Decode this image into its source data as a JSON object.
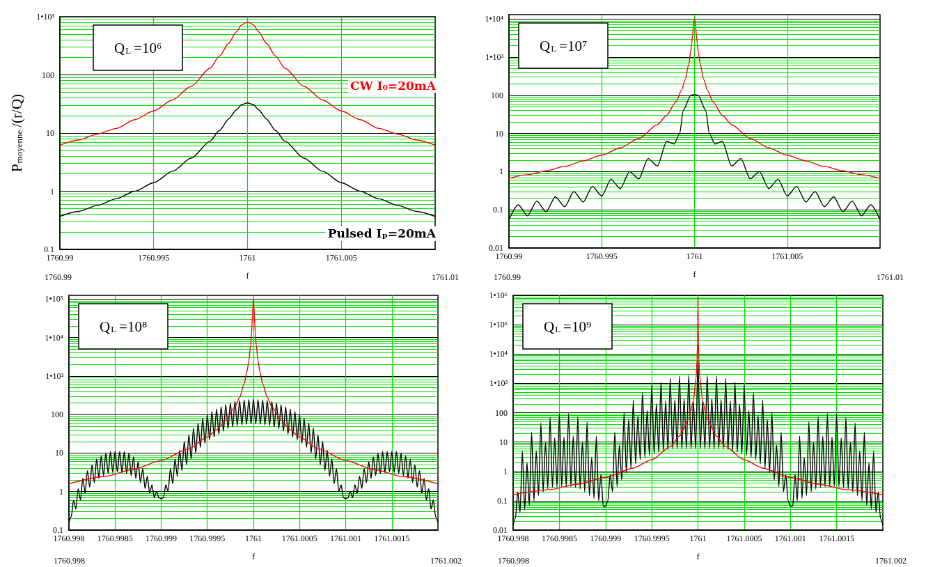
{
  "chart_data": [
    {
      "type": "line",
      "title": "Q$_{L}$=10⁶",
      "ylabel": "P$_{moyenne}$/(r/Q)",
      "xlabel": "f",
      "log": true,
      "grid": true,
      "xlim": [
        1760.99,
        1761.01
      ],
      "xticks": [
        1760.99,
        1760.995,
        1761,
        1761.005
      ],
      "ylim": [
        0.1,
        1000
      ],
      "yticks": [
        0.1,
        1,
        10,
        100,
        {
          "value": 1000,
          "label": "1•10³"
        }
      ],
      "annotations": [
        "1760.99",
        "1761.01"
      ],
      "x": [
        1760.99,
        1760.991,
        1760.992,
        1760.993,
        1760.994,
        1760.995,
        1760.996,
        1760.997,
        1760.998,
        1760.9985,
        1760.999,
        1760.9994,
        1760.9997,
        1761,
        1761.0003,
        1761.0006,
        1761.001,
        1761.0015,
        1761.002,
        1761.003,
        1761.004,
        1761.005,
        1761.006,
        1761.007,
        1761.008,
        1761.009,
        1761.01
      ],
      "series": [
        {
          "name": "CW I₀=20mA",
          "color": "#ff0000",
          "values": [
            6.2,
            7.6,
            9.6,
            12,
            17,
            24,
            37,
            64,
            130,
            210,
            350,
            550,
            730,
            810,
            730,
            550,
            350,
            210,
            130,
            64,
            37,
            24,
            17,
            12,
            9.6,
            7.6,
            6.2
          ]
        },
        {
          "name": "Pulsed Iₚ=20mA",
          "color": "#000000",
          "values": [
            0.37,
            0.45,
            0.57,
            0.74,
            1.0,
            1.4,
            2.2,
            3.7,
            7.2,
            11,
            17.5,
            25,
            31,
            33,
            31,
            25,
            17.5,
            11,
            7.2,
            3.7,
            2.2,
            1.4,
            1.0,
            0.74,
            0.57,
            0.45,
            0.37
          ]
        }
      ]
    },
    {
      "type": "line",
      "title": "Q$_{L}$=10⁷",
      "xlabel": "f",
      "log": true,
      "grid": true,
      "xlim": [
        1760.99,
        1761.01
      ],
      "xticks": [
        1760.99,
        1760.995,
        1761,
        1761.005
      ],
      "ylim": [
        0.01,
        13000
      ],
      "yticks": [
        0.01,
        0.1,
        1,
        10,
        100,
        {
          "value": 1000,
          "label": "1•10³"
        },
        {
          "value": 10000,
          "label": "1•10⁴"
        }
      ],
      "annotations": [
        "1760.99",
        "1761.01"
      ],
      "series": [
        {
          "color": "#ff0000",
          "x": [
            1760.99,
            1760.991,
            1760.992,
            1760.993,
            1760.994,
            1760.995,
            1760.996,
            1760.997,
            1760.998,
            1760.9985,
            1760.999,
            1760.9993,
            1760.9995,
            1760.9997,
            1760.9998,
            1760.99985,
            1760.9999,
            1760.99994,
            1760.99997,
            1761,
            1761.00003,
            1761.00006,
            1761.0001,
            1761.00015,
            1761.0002,
            1761.0003,
            1761.0005,
            1761.0007,
            1761.001,
            1761.0015,
            1761.002,
            1761.003,
            1761.004,
            1761.005,
            1761.006,
            1761.007,
            1761.008,
            1761.009,
            1761.01
          ],
          "values": [
            0.67,
            0.83,
            1.05,
            1.37,
            1.9,
            2.7,
            4.2,
            7.4,
            17,
            30,
            67,
            135,
            260,
            690,
            1420,
            2270,
            3930,
            6290,
            8430,
            9500,
            8430,
            6290,
            3930,
            2270,
            1420,
            690,
            260,
            135,
            67,
            30,
            17,
            7.4,
            4.2,
            2.7,
            1.9,
            1.37,
            1.05,
            0.83,
            0.67
          ]
        },
        {
          "color": "#000000",
          "x": [
            1760.99,
            1760.9905,
            1760.991,
            1760.9915,
            1760.992,
            1760.9925,
            1760.993,
            1760.9935,
            1760.994,
            1760.9945,
            1760.995,
            1760.9955,
            1760.996,
            1760.9965,
            1760.997,
            1760.9975,
            1760.998,
            1760.9985,
            1760.9989,
            1760.9992,
            1760.9994,
            1760.9998,
            1761,
            1761.0002,
            1761.0006,
            1761.0008,
            1761.0011,
            1761.0015,
            1761.002,
            1761.0025,
            1761.003,
            1761.0035,
            1761.004,
            1761.0045,
            1761.005,
            1761.0055,
            1761.006,
            1761.0065,
            1761.007,
            1761.0075,
            1761.008,
            1761.0085,
            1761.009,
            1761.0095,
            1761.01
          ],
          "values": [
            0.055,
            0.135,
            0.07,
            0.17,
            0.089,
            0.22,
            0.12,
            0.3,
            0.16,
            0.41,
            0.23,
            0.63,
            0.36,
            1.0,
            0.65,
            2.2,
            1.4,
            6.2,
            5.3,
            10,
            41,
            100,
            105,
            100,
            41,
            10,
            5.3,
            6.2,
            1.4,
            2.2,
            0.65,
            1.0,
            0.36,
            0.63,
            0.23,
            0.41,
            0.16,
            0.3,
            0.12,
            0.22,
            0.089,
            0.17,
            0.07,
            0.135,
            0.055
          ]
        }
      ]
    },
    {
      "type": "line",
      "title": "Q$_{L}$=10⁸",
      "xlabel": "f",
      "log": true,
      "grid": true,
      "xlim": [
        1760.998,
        1761.002
      ],
      "xticks": [
        1760.998,
        1760.9985,
        1760.999,
        1760.9995,
        1761,
        1761.0005,
        1761.001,
        1761.0015
      ],
      "ylim": [
        0.1,
        125000
      ],
      "yticks": [
        0.1,
        1,
        10,
        100,
        {
          "value": 1000,
          "label": "1•10³"
        },
        {
          "value": 10000,
          "label": "1•10⁴"
        },
        {
          "value": 100000,
          "label": "1•10⁵"
        }
      ],
      "annotations": [
        "1760.998",
        "1761.002"
      ],
      "x": [
        1760.998,
        1760.998025,
        1760.99805,
        1760.998075,
        1760.9981,
        1760.998125,
        1760.99815,
        1760.998175,
        1760.9982,
        1760.998225,
        1760.99825,
        1760.998275,
        1760.9983,
        1760.998325,
        1760.99835,
        1760.998375,
        1760.9984,
        1760.998425,
        1760.99845,
        1760.998475,
        1760.9985,
        1760.998525,
        1760.99855,
        1760.998575,
        1760.9986,
        1760.998625,
        1760.99865,
        1760.998675,
        1760.9987,
        1760.998725,
        1760.99875,
        1760.998775,
        1760.9988,
        1760.998825,
        1760.99885,
        1760.998875,
        1760.9989,
        1760.998925,
        1760.99895,
        1760.998975,
        1760.999,
        1760.999025,
        1760.99905,
        1760.999075,
        1760.9991,
        1760.999125,
        1760.99915,
        1760.999175,
        1760.9992,
        1760.999225,
        1760.99925,
        1760.999275,
        1760.9993,
        1760.999325,
        1760.99935,
        1760.999375,
        1760.9994,
        1760.999425,
        1760.99945,
        1760.999475,
        1760.9995,
        1760.999525,
        1760.99955,
        1760.999575,
        1760.9996,
        1760.999625,
        1760.99965,
        1760.999675,
        1760.9997,
        1760.999725,
        1760.99975,
        1760.999775,
        1760.9998,
        1760.999825,
        1760.99985,
        1760.999875,
        1760.9999,
        1760.999925,
        1760.99995,
        1760.999975,
        1761,
        1761.000025,
        1761.00005,
        1761.000075,
        1761.0001,
        1761.000125,
        1761.00015,
        1761.000175,
        1761.0002,
        1761.000225,
        1761.00025,
        1761.000275,
        1761.0003,
        1761.000325,
        1761.00035,
        1761.000375,
        1761.0004,
        1761.000425,
        1761.00045,
        1761.000475,
        1761.0005,
        1761.000525,
        1761.00055,
        1761.000575,
        1761.0006,
        1761.000625,
        1761.00065,
        1761.000675,
        1761.0007,
        1761.000725,
        1761.00075,
        1761.000775,
        1761.0008,
        1761.000825,
        1761.00085,
        1761.000875,
        1761.0009,
        1761.000925,
        1761.00095,
        1761.000975,
        1761.001,
        1761.001025,
        1761.00105,
        1761.001075,
        1761.0011,
        1761.001125,
        1761.00115,
        1761.001175,
        1761.0012,
        1761.001225,
        1761.00125,
        1761.001275,
        1761.0013,
        1761.001325,
        1761.00135,
        1761.001375,
        1761.0014,
        1761.001425,
        1761.00145,
        1761.001475,
        1761.0015,
        1761.001525,
        1761.00155,
        1761.001575,
        1761.0016,
        1761.001625,
        1761.00165,
        1761.001675,
        1761.0017,
        1761.001725,
        1761.00175,
        1761.001775,
        1761.0018,
        1761.001825,
        1761.00185,
        1761.001875,
        1761.0019,
        1761.001925,
        1761.00195,
        1761.001975,
        1761.002
      ],
      "series": [
        {
          "color": "#000000",
          "values": [
            0.16,
            0.22,
            0.6,
            0.35,
            1.2,
            0.6,
            2.2,
            0.9,
            3.5,
            1.3,
            5,
            1.7,
            7,
            2.2,
            8.5,
            2.6,
            10,
            2.9,
            11,
            3.1,
            11,
            3.2,
            11,
            3.1,
            11,
            2.9,
            10,
            2.6,
            8,
            2.2,
            6,
            1.7,
            4,
            1.2,
            2.5,
            0.9,
            1.5,
            0.7,
            1.0,
            0.7,
            0.65,
            0.7,
            1.5,
            1.0,
            4,
            1.6,
            7,
            2.5,
            12,
            3.5,
            20,
            5,
            30,
            7,
            45,
            10,
            60,
            14,
            80,
            18,
            100,
            22,
            120,
            26,
            140,
            31,
            160,
            37,
            180,
            43,
            200,
            48,
            220,
            52,
            230,
            54,
            240,
            56,
            245,
            57,
            250,
            57,
            245,
            56,
            240,
            54,
            230,
            52,
            220,
            48,
            200,
            43,
            180,
            37,
            160,
            31,
            140,
            26,
            120,
            22,
            100,
            18,
            80,
            14,
            60,
            10,
            45,
            7,
            30,
            5,
            20,
            3.5,
            12,
            2.5,
            7,
            1.6,
            4,
            1.0,
            1.5,
            0.7,
            0.65,
            0.7,
            1.0,
            0.7,
            1.5,
            0.9,
            2.5,
            1.2,
            4,
            1.7,
            6,
            2.2,
            8,
            2.6,
            10,
            2.9,
            11,
            3.1,
            11,
            3.2,
            11,
            3.1,
            11,
            2.9,
            10,
            2.6,
            8.5,
            2.2,
            7,
            1.7,
            5,
            1.3,
            3.5,
            0.9,
            2.2,
            0.6,
            1.2,
            0.35,
            0.6,
            0.22,
            0.16
          ]
        },
        {
          "color": "#ff0000",
          "x": [
            1760.998,
            1760.9984,
            1760.9987,
            1760.999,
            1760.9993,
            1760.9995,
            1760.9996,
            1760.9997,
            1760.9998,
            1760.99985,
            1760.9999,
            1760.99993,
            1760.99995,
            1760.99997,
            1760.99998,
            1760.999985,
            1760.99999,
            1760.999994,
            1760.999997,
            1761,
            1761.000003,
            1761.000006,
            1761.00001,
            1761.000015,
            1761.00002,
            1761.00003,
            1761.00005,
            1761.00007,
            1761.0001,
            1761.00015,
            1761.0002,
            1761.0003,
            1761.0004,
            1761.0005,
            1761.0007,
            1761.001,
            1761.0013,
            1761.0016,
            1761.002
          ],
          "values": [
            1.6,
            2.5,
            3.8,
            6.4,
            13,
            26,
            40,
            71,
            160,
            280,
            640,
            1290,
            2500,
            6600,
            13700,
            21900,
            38300,
            61900,
            83800,
            95000,
            83800,
            61900,
            38300,
            21900,
            13700,
            6600,
            2500,
            1290,
            640,
            280,
            160,
            71,
            40,
            26,
            13,
            6.4,
            3.8,
            2.5,
            1.6
          ]
        }
      ]
    },
    {
      "type": "line",
      "title": "Q$_{L}$=10⁹",
      "xlabel": "f",
      "log": true,
      "grid": true,
      "xlim": [
        1760.998,
        1761.002
      ],
      "xticks": [
        1760.998,
        1760.9985,
        1760.999,
        1760.9995,
        1761,
        1761.0005,
        1761.001,
        1761.0015
      ],
      "ylim": [
        0.01,
        1000000
      ],
      "yticks": [
        0.01,
        0.1,
        1,
        10,
        100,
        {
          "value": 1000,
          "label": "1•10³"
        },
        {
          "value": 10000,
          "label": "1•10⁴"
        },
        {
          "value": 100000,
          "label": "1•10⁵"
        },
        {
          "value": 1000000,
          "label": "1•10⁶"
        }
      ],
      "annotations": [
        "1760.998",
        "1761.002"
      ],
      "x": [
        1760.998,
        1760.998025,
        1760.99805,
        1760.998075,
        1760.9981,
        1760.998125,
        1760.99815,
        1760.998175,
        1760.9982,
        1760.998225,
        1760.99825,
        1760.998275,
        1760.9983,
        1760.998325,
        1760.99835,
        1760.998375,
        1760.9984,
        1760.998425,
        1760.99845,
        1760.998475,
        1760.9985,
        1760.998525,
        1760.99855,
        1760.998575,
        1760.9986,
        1760.998625,
        1760.99865,
        1760.998675,
        1760.9987,
        1760.998725,
        1760.99875,
        1760.998775,
        1760.9988,
        1760.998825,
        1760.99885,
        1760.998875,
        1760.9989,
        1760.998925,
        1760.99895,
        1760.998975,
        1760.999,
        1760.999025,
        1760.99905,
        1760.999075,
        1760.9991,
        1760.999125,
        1760.99915,
        1760.999175,
        1760.9992,
        1760.999225,
        1760.99925,
        1760.999275,
        1760.9993,
        1760.999325,
        1760.99935,
        1760.999375,
        1760.9994,
        1760.999425,
        1760.99945,
        1760.999475,
        1760.9995,
        1760.999525,
        1760.99955,
        1760.999575,
        1760.9996,
        1760.999625,
        1760.99965,
        1760.999675,
        1760.9997,
        1760.999725,
        1760.99975,
        1760.999775,
        1760.9998,
        1760.999825,
        1760.99985,
        1760.999875,
        1760.9999,
        1760.999925,
        1760.99995,
        1760.999975,
        1761,
        1761.000025,
        1761.00005,
        1761.000075,
        1761.0001,
        1761.000125,
        1761.00015,
        1761.000175,
        1761.0002,
        1761.000225,
        1761.00025,
        1761.000275,
        1761.0003,
        1761.000325,
        1761.00035,
        1761.000375,
        1761.0004,
        1761.000425,
        1761.00045,
        1761.000475,
        1761.0005,
        1761.000525,
        1761.00055,
        1761.000575,
        1761.0006,
        1761.000625,
        1761.00065,
        1761.000675,
        1761.0007,
        1761.000725,
        1761.00075,
        1761.000775,
        1761.0008,
        1761.000825,
        1761.00085,
        1761.000875,
        1761.0009,
        1761.000925,
        1761.00095,
        1761.000975,
        1761.001,
        1761.001025,
        1761.00105,
        1761.001075,
        1761.0011,
        1761.001125,
        1761.00115,
        1761.001175,
        1761.0012,
        1761.001225,
        1761.00125,
        1761.001275,
        1761.0013,
        1761.001325,
        1761.00135,
        1761.001375,
        1761.0014,
        1761.001425,
        1761.00145,
        1761.001475,
        1761.0015,
        1761.001525,
        1761.00155,
        1761.001575,
        1761.0016,
        1761.001625,
        1761.00165,
        1761.001675,
        1761.0017,
        1761.001725,
        1761.00175,
        1761.001775,
        1761.0018,
        1761.001825,
        1761.00185,
        1761.001875,
        1761.0019,
        1761.001925,
        1761.00195,
        1761.001975,
        1761.002
      ],
      "series": [
        {
          "color": "#000000",
          "values": [
            0.015,
            0.025,
            0.2,
            0.04,
            5,
            0.05,
            2,
            0.07,
            22,
            0.1,
            5,
            0.15,
            45,
            0.2,
            10,
            0.25,
            70,
            0.28,
            14,
            0.3,
            95,
            0.3,
            15,
            0.3,
            95,
            0.3,
            16,
            0.28,
            75,
            0.25,
            10,
            0.2,
            50,
            0.15,
            3,
            0.12,
            16,
            0.1,
            0.8,
            0.065,
            0.065,
            0.1,
            0.8,
            0.2,
            22,
            0.3,
            8,
            0.5,
            100,
            0.9,
            60,
            1.3,
            270,
            1.8,
            80,
            2.5,
            500,
            3,
            120,
            3.5,
            900,
            4,
            200,
            4.5,
            1100,
            5,
            250,
            5.5,
            1500,
            6,
            280,
            6,
            1800,
            6,
            300,
            6,
            1900,
            6,
            250,
            6,
            6000,
            6,
            250,
            6,
            1900,
            6,
            300,
            6,
            1800,
            6,
            280,
            6,
            1500,
            5.5,
            250,
            5,
            1100,
            4.5,
            200,
            4,
            900,
            3.5,
            120,
            3,
            500,
            2.5,
            80,
            1.8,
            270,
            1.3,
            60,
            0.9,
            100,
            0.5,
            8,
            0.3,
            22,
            0.2,
            0.8,
            0.1,
            0.065,
            0.065,
            0.8,
            0.1,
            16,
            0.12,
            3,
            0.15,
            50,
            0.2,
            10,
            0.25,
            75,
            0.28,
            16,
            0.3,
            95,
            0.3,
            15,
            0.3,
            95,
            0.3,
            14,
            0.28,
            70,
            0.25,
            10,
            0.2,
            45,
            0.15,
            5,
            0.1,
            22,
            0.07,
            2,
            0.05,
            5,
            0.04,
            0.2,
            0.025,
            0.015
          ]
        },
        {
          "color": "#ff0000",
          "x": [
            1760.998,
            1760.9984,
            1760.9987,
            1760.999,
            1760.9993,
            1760.9995,
            1760.9997,
            1760.9998,
            1760.9999,
            1760.99995,
            1760.99998,
            1760.99999,
            1760.999995,
            1760.999997,
            1760.999998,
            1760.999999,
            1760.9999994,
            1760.9999997,
            1761,
            1761.0000003,
            1761.0000006,
            1761.000001,
            1761.000002,
            1761.000003,
            1761.000005,
            1761.00001,
            1761.00002,
            1761.00005,
            1761.0001,
            1761.0002,
            1761.0003,
            1761.0005,
            1761.0007,
            1761.001,
            1761.0013,
            1761.0016,
            1761.002
          ],
          "values": [
            0.16,
            0.24,
            0.37,
            0.62,
            1.3,
            2.5,
            6.9,
            16,
            62,
            250,
            1560,
            6200,
            24000,
            64000,
            131000,
            356000,
            561000,
            741000,
            830000,
            741000,
            561000,
            356000,
            131000,
            64000,
            24000,
            6200,
            1560,
            250,
            62,
            16,
            6.9,
            2.5,
            1.3,
            0.62,
            0.37,
            0.24,
            0.16
          ]
        }
      ]
    }
  ]
}
